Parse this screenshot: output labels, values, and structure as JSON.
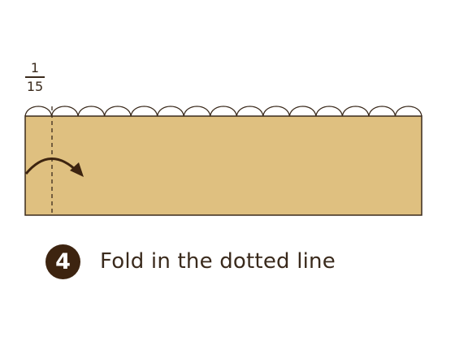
{
  "fraction": {
    "numerator": "1",
    "denominator": "15"
  },
  "scallop_count": 15,
  "step": {
    "number": "4",
    "instruction": "Fold in the dotted line"
  },
  "colors": {
    "paper": "#dfc080",
    "outline": "#3a2a1c",
    "badge": "#3d2410"
  },
  "icons": {
    "fold_arrow": "curved-fold-arrow-icon"
  }
}
